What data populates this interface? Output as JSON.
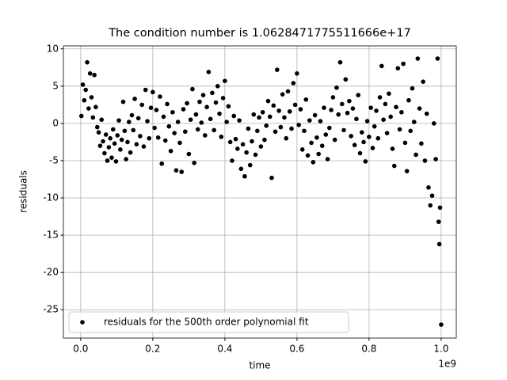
{
  "chart_data": {
    "type": "scatter",
    "title": "The condition number is 1.0628471775511666e+17",
    "x_label": "time",
    "y_label": "residuals",
    "x_offset_label": "1e9",
    "xlim": [
      -0.048,
      1.042
    ],
    "ylim": [
      -28.8,
      10.4
    ],
    "xticks": [
      {
        "value": 0,
        "label": "0.0"
      },
      {
        "value": 0.2,
        "label": "0.2"
      },
      {
        "value": 0.4,
        "label": "0.4"
      },
      {
        "value": 0.6,
        "label": "0.6"
      },
      {
        "value": 0.8,
        "label": "0.8"
      },
      {
        "value": 1,
        "label": "1.0"
      }
    ],
    "yticks": [
      10,
      5,
      0,
      -5,
      -10,
      -15,
      -20,
      -25
    ],
    "grid": true,
    "legend": "lower left",
    "x": [
      0.002,
      0.006,
      0.01,
      0.014,
      0.018,
      0.022,
      0.026,
      0.03,
      0.034,
      0.038,
      0.042,
      0.046,
      0.05,
      0.054,
      0.058,
      0.062,
      0.066,
      0.07,
      0.074,
      0.078,
      0.082,
      0.086,
      0.09,
      0.094,
      0.098,
      0.102,
      0.106,
      0.11,
      0.114,
      0.118,
      0.122,
      0.126,
      0.13,
      0.134,
      0.138,
      0.142,
      0.146,
      0.15,
      0.155,
      0.16,
      0.165,
      0.17,
      0.175,
      0.18,
      0.185,
      0.19,
      0.195,
      0.2,
      0.205,
      0.21,
      0.215,
      0.22,
      0.225,
      0.23,
      0.235,
      0.24,
      0.245,
      0.25,
      0.255,
      0.26,
      0.265,
      0.27,
      0.275,
      0.28,
      0.285,
      0.29,
      0.295,
      0.3,
      0.305,
      0.31,
      0.315,
      0.32,
      0.325,
      0.33,
      0.335,
      0.34,
      0.345,
      0.35,
      0.355,
      0.36,
      0.365,
      0.37,
      0.375,
      0.38,
      0.385,
      0.39,
      0.395,
      0.4,
      0.405,
      0.41,
      0.415,
      0.42,
      0.425,
      0.43,
      0.435,
      0.44,
      0.445,
      0.45,
      0.455,
      0.46,
      0.465,
      0.47,
      0.475,
      0.48,
      0.485,
      0.49,
      0.495,
      0.5,
      0.505,
      0.51,
      0.515,
      0.52,
      0.525,
      0.53,
      0.535,
      0.54,
      0.545,
      0.55,
      0.555,
      0.56,
      0.565,
      0.57,
      0.575,
      0.58,
      0.585,
      0.59,
      0.595,
      0.6,
      0.605,
      0.61,
      0.615,
      0.62,
      0.625,
      0.63,
      0.635,
      0.64,
      0.645,
      0.65,
      0.655,
      0.66,
      0.665,
      0.67,
      0.675,
      0.68,
      0.685,
      0.69,
      0.695,
      0.7,
      0.705,
      0.71,
      0.715,
      0.72,
      0.725,
      0.73,
      0.735,
      0.74,
      0.745,
      0.75,
      0.755,
      0.76,
      0.765,
      0.77,
      0.775,
      0.78,
      0.785,
      0.79,
      0.795,
      0.8,
      0.805,
      0.81,
      0.815,
      0.82,
      0.825,
      0.83,
      0.835,
      0.84,
      0.845,
      0.85,
      0.855,
      0.86,
      0.865,
      0.87,
      0.875,
      0.88,
      0.885,
      0.89,
      0.895,
      0.9,
      0.905,
      0.91,
      0.915,
      0.92,
      0.925,
      0.93,
      0.935,
      0.94,
      0.945,
      0.95,
      0.955,
      0.96,
      0.965,
      0.97,
      0.975,
      0.98,
      0.985,
      0.99,
      0.993,
      0.995,
      0.997,
      1.0
    ],
    "series": [
      {
        "name": "residuals for the 500th order polynomial fit",
        "color": "#000000",
        "values": [
          1.0,
          5.2,
          3.1,
          4.5,
          8.2,
          2.0,
          6.7,
          3.5,
          0.8,
          6.5,
          2.2,
          -0.5,
          -1.2,
          -3.0,
          0.5,
          -2.4,
          -4.0,
          -1.5,
          -5.0,
          -3.2,
          -2.0,
          -4.6,
          -0.8,
          -2.7,
          -5.1,
          -1.6,
          0.4,
          -3.5,
          -2.2,
          2.9,
          -1.0,
          -4.8,
          -2.5,
          0.2,
          -3.9,
          1.1,
          -0.9,
          3.3,
          -2.8,
          0.7,
          -1.7,
          2.5,
          -3.1,
          4.5,
          0.3,
          -2.0,
          2.1,
          4.2,
          -0.6,
          1.8,
          -1.9,
          3.6,
          -5.4,
          0.9,
          -2.3,
          2.6,
          -0.4,
          -3.7,
          1.5,
          -1.3,
          -6.3,
          0.2,
          -2.6,
          -6.5,
          1.9,
          -1.1,
          2.7,
          -4.1,
          0.5,
          4.6,
          -5.3,
          1.2,
          -0.8,
          2.9,
          0.1,
          3.8,
          -1.6,
          2.2,
          6.9,
          0.6,
          4.1,
          -0.9,
          2.8,
          5.0,
          1.3,
          -1.8,
          3.4,
          5.7,
          0.2,
          2.3,
          -2.5,
          -5.0,
          1.0,
          -2.1,
          -3.4,
          0.4,
          -6.1,
          -2.8,
          -7.1,
          -3.9,
          -0.7,
          -5.6,
          -2.4,
          1.2,
          -4.2,
          -1.0,
          0.8,
          -3.1,
          1.5,
          -2.2,
          -0.3,
          3.0,
          0.9,
          -7.3,
          2.4,
          -1.1,
          7.2,
          1.7,
          -0.5,
          3.9,
          0.8,
          -2.0,
          4.3,
          1.6,
          -0.7,
          5.4,
          2.5,
          6.7,
          -0.2,
          1.9,
          -3.5,
          -1.0,
          3.2,
          -4.3,
          0.4,
          -2.6,
          -5.2,
          1.1,
          -1.9,
          -4.1,
          0.3,
          -3.0,
          2.1,
          -1.5,
          -4.8,
          -0.6,
          1.8,
          3.5,
          -2.2,
          4.8,
          1.2,
          8.2,
          2.6,
          -0.9,
          5.9,
          1.4,
          3.0,
          -1.7,
          2.0,
          -2.9,
          0.6,
          3.8,
          -4.0,
          -1.2,
          -2.5,
          -5.1,
          0.3,
          -1.8,
          2.1,
          -3.3,
          -0.4,
          1.7,
          -2.0,
          3.5,
          7.7,
          0.5,
          2.6,
          -1.3,
          4.0,
          0.9,
          -3.4,
          -5.7,
          2.2,
          7.4,
          -0.8,
          1.5,
          8.0,
          -2.6,
          -6.4,
          3.1,
          -1.0,
          4.7,
          0.2,
          -4.2,
          8.7,
          2.0,
          -2.7,
          5.6,
          -5.0,
          1.3,
          -8.6,
          -11.0,
          -9.7,
          0.0,
          -4.8,
          8.7,
          -13.2,
          -16.2,
          -11.3,
          -27.0
        ]
      }
    ]
  }
}
